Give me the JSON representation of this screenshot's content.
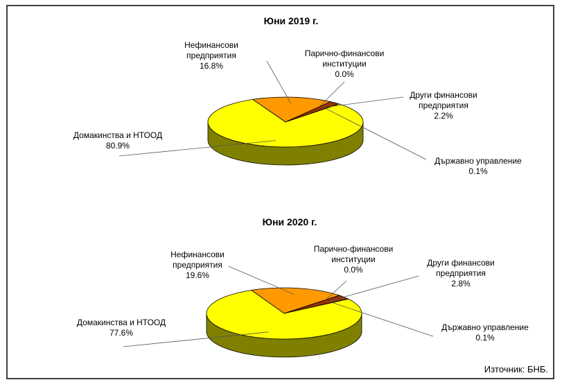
{
  "chart_data": [
    {
      "type": "pie",
      "title": "Юни 2019 г.",
      "categories": [
        "Нефинансови предприятия",
        "Парично-финансови институции",
        "Други финансови предприятия",
        "Държавно управление",
        "Домакинства и НТООД"
      ],
      "values": [
        16.8,
        0.0,
        2.2,
        0.1,
        80.9
      ],
      "value_labels": [
        "16.8%",
        "0.0%",
        "2.2%",
        "0.1%",
        "80.9%"
      ],
      "colors": [
        "#ff9900",
        "#cc3300",
        "#993300",
        "#800000",
        "#ffff00"
      ]
    },
    {
      "type": "pie",
      "title": "Юни 2020 г.",
      "categories": [
        "Нефинансови предприятия",
        "Парично-финансови институции",
        "Други финансови предприятия",
        "Държавно управление",
        "Домакинства и НТООД"
      ],
      "values": [
        19.6,
        0.0,
        2.8,
        0.1,
        77.6
      ],
      "value_labels": [
        "19.6%",
        "0.0%",
        "2.8%",
        "0.1%",
        "77.6%"
      ],
      "colors": [
        "#ff9900",
        "#cc3300",
        "#993300",
        "#800000",
        "#ffff00"
      ]
    }
  ],
  "source": "Източник: БНБ."
}
